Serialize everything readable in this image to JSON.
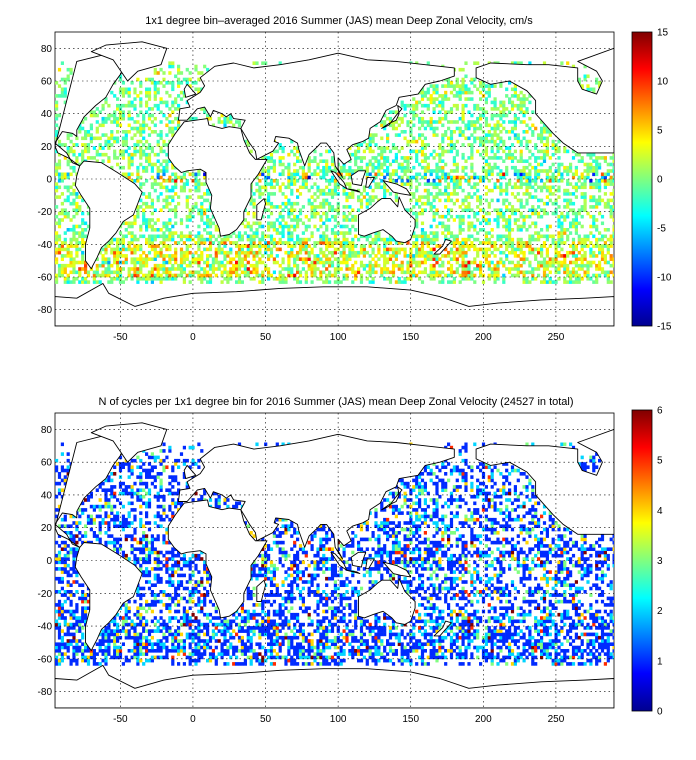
{
  "chart_data": [
    {
      "type": "heatmap",
      "title": "1x1 degree bin–averaged 2016 Summer (JAS) mean Deep Zonal Velocity, cm/s",
      "xlim": [
        -95,
        290
      ],
      "ylim": [
        -90,
        90
      ],
      "xticks": [
        -50,
        0,
        50,
        100,
        150,
        200,
        250
      ],
      "yticks": [
        -80,
        -60,
        -40,
        -20,
        0,
        20,
        40,
        60,
        80
      ],
      "grid": true,
      "colorbar": {
        "min": -15,
        "max": 15,
        "ticks": [
          15,
          10,
          5,
          0,
          -5,
          -10,
          -15
        ],
        "colormap": "jet",
        "placement": "right"
      }
    },
    {
      "type": "heatmap",
      "title": "N of cycles per 1x1 degree bin for 2016 Summer (JAS) mean Deep Zonal Velocity (24527 in total)",
      "xlim": [
        -95,
        290
      ],
      "ylim": [
        -90,
        90
      ],
      "xticks": [
        -50,
        0,
        50,
        100,
        150,
        200,
        250
      ],
      "yticks": [
        -80,
        -60,
        -40,
        -20,
        0,
        20,
        40,
        60,
        80
      ],
      "grid": true,
      "total": 24527,
      "colorbar": {
        "min": 0,
        "max": 6,
        "ticks": [
          6,
          5,
          4,
          3,
          2,
          1,
          0
        ],
        "colormap": "jet",
        "placement": "right"
      }
    }
  ]
}
